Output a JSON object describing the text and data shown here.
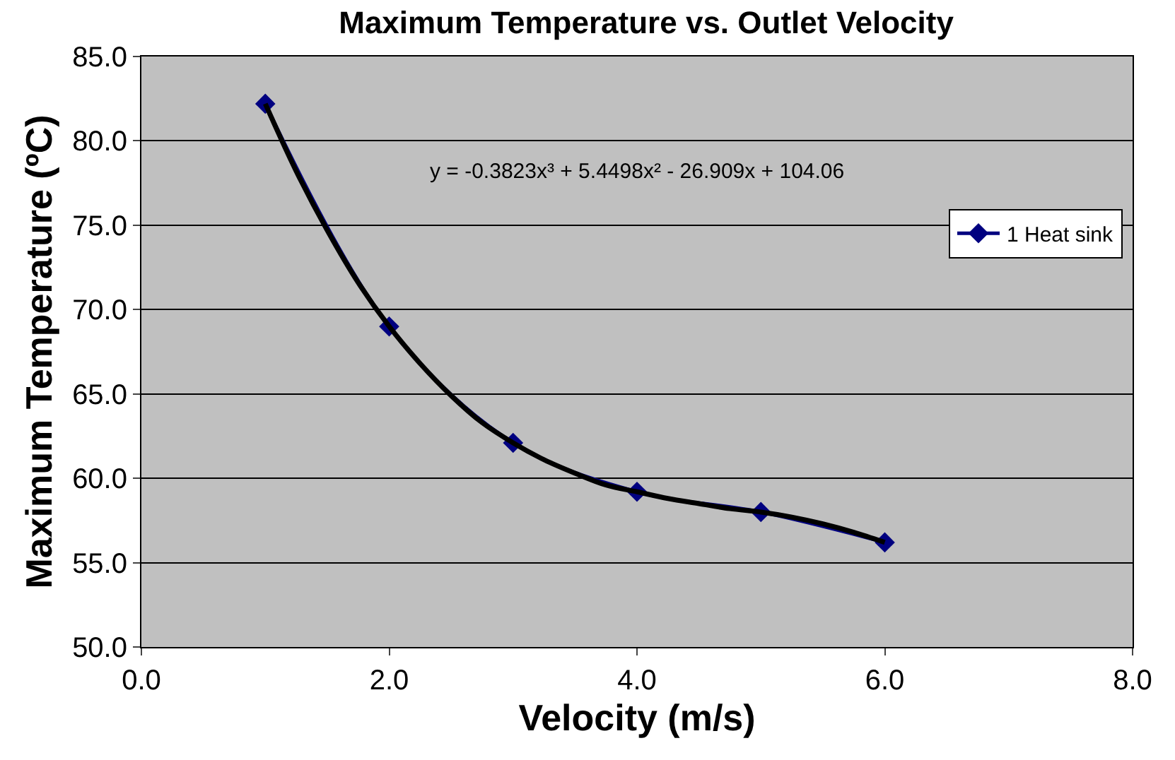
{
  "chart_data": {
    "type": "line",
    "title": "Maximum Temperature vs. Outlet Velocity",
    "xlabel": "Velocity (m/s)",
    "ylabel": "Maximum Temperature (ºC)",
    "series": [
      {
        "name": "1 Heat sink",
        "color": "#000080",
        "marker": "diamond",
        "x": [
          1,
          2,
          3,
          4,
          5,
          6
        ],
        "values": [
          82.2,
          69.0,
          62.1,
          59.2,
          58.0,
          56.2
        ]
      },
      {
        "color": "#000000",
        "marker": "none",
        "x": [
          1,
          1.25,
          1.5,
          1.75,
          2,
          2.25,
          2.5,
          2.75,
          3,
          3.25,
          3.5,
          3.75,
          4,
          4.25,
          4.5,
          4.75,
          5,
          5.25,
          5.5,
          5.75,
          6
        ],
        "values": [
          82.2,
          78.2,
          74.7,
          71.6,
          69.0,
          66.8,
          64.9,
          63.3,
          62.1,
          61.1,
          60.3,
          59.6,
          59.2,
          58.8,
          58.5,
          58.2,
          58.0,
          57.7,
          57.3,
          56.8,
          56.2
        ]
      }
    ],
    "annotations": [
      "y = -0.3823x³ + 5.4498x² - 26.909x + 104.06"
    ],
    "xlim": [
      0,
      8
    ],
    "xticks": [
      {
        "value": 0,
        "label": "0.0"
      },
      {
        "value": 2,
        "label": "2.0"
      },
      {
        "value": 4,
        "label": "4.0"
      },
      {
        "value": 6,
        "label": "6.0"
      },
      {
        "value": 8,
        "label": "8.0"
      }
    ],
    "ylim": [
      50,
      85
    ],
    "yticks": [
      {
        "value": 50,
        "label": "50.0"
      },
      {
        "value": 55,
        "label": "55.0"
      },
      {
        "value": 60,
        "label": "60.0"
      },
      {
        "value": 65,
        "label": "65.0"
      },
      {
        "value": 70,
        "label": "70.0"
      },
      {
        "value": 75,
        "label": "75.0"
      },
      {
        "value": 80,
        "label": "80.0"
      },
      {
        "value": 85,
        "label": "85.0"
      }
    ],
    "grid": "y",
    "legend": "right"
  }
}
